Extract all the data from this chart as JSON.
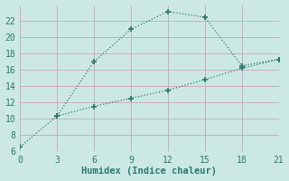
{
  "xlabel": "Humidex (Indice chaleur)",
  "background_color": "#cce8e4",
  "grid_color": "#b0d8d4",
  "line_color": "#2a7a6a",
  "line1_x": [
    0,
    3,
    6,
    9,
    12,
    15,
    18,
    21
  ],
  "line1_y": [
    6.5,
    10.3,
    11.5,
    12.5,
    13.5,
    14.8,
    16.2,
    17.3
  ],
  "line2_x": [
    3,
    6,
    9,
    12,
    15,
    18,
    21
  ],
  "line2_y": [
    10.3,
    17.0,
    21.0,
    23.2,
    22.5,
    16.5,
    17.3
  ],
  "xlim": [
    0,
    21
  ],
  "ylim": [
    6,
    24
  ],
  "xticks": [
    0,
    3,
    6,
    9,
    12,
    15,
    18,
    21
  ],
  "yticks": [
    6,
    8,
    10,
    12,
    14,
    16,
    18,
    20,
    22
  ],
  "marker": "+",
  "marker_size": 5,
  "linewidth": 0.9
}
